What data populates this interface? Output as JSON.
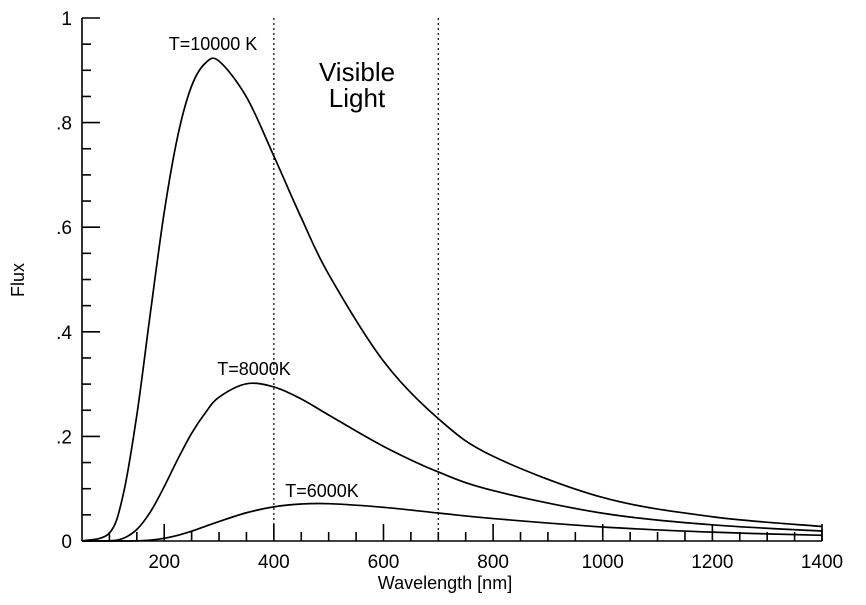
{
  "chart_data": {
    "type": "line",
    "title": "",
    "xlabel": "Wavelength [nm]",
    "ylabel": "Flux",
    "xlim": [
      50,
      1400
    ],
    "ylim": [
      0,
      1
    ],
    "x_ticks": [
      200,
      400,
      600,
      800,
      1000,
      1200,
      1400
    ],
    "x_tick_labels": [
      "200",
      "400",
      "600",
      "800",
      "1000",
      "1200",
      "1400"
    ],
    "y_ticks": [
      0,
      0.2,
      0.4,
      0.6,
      0.8,
      1
    ],
    "y_tick_labels": [
      "0",
      ".2",
      ".4",
      ".6",
      ".8",
      "1"
    ],
    "x_minor_step": 50,
    "y_minor_step": 0.05,
    "grid": false,
    "line_color": "#000000",
    "x": [
      50,
      100,
      125,
      150,
      175,
      200,
      225,
      250,
      275,
      300,
      350,
      400,
      450,
      500,
      600,
      700,
      800,
      1000,
      1200,
      1400
    ],
    "series": [
      {
        "label": "T=10000 K",
        "values": [
          0,
          0.0151,
          0.088,
          0.2406,
          0.438,
          0.6287,
          0.776,
          0.87,
          0.9136,
          0.9176,
          0.849,
          0.736,
          0.618,
          0.51,
          0.344,
          0.234,
          0.162,
          0.0832,
          0.0464,
          0.0277
        ]
      },
      {
        "label": "T=8000K",
        "values": [
          0,
          0.0004,
          0.005,
          0.0219,
          0.056,
          0.104,
          0.157,
          0.206,
          0.245,
          0.275,
          0.3006,
          0.2946,
          0.2716,
          0.241,
          0.181,
          0.132,
          0.0964,
          0.0531,
          0.0309,
          0.019
        ]
      },
      {
        "label": "T=6000K",
        "values": [
          0,
          0,
          0,
          0.0004,
          0.0018,
          0.0052,
          0.0109,
          0.0187,
          0.028,
          0.0372,
          0.054,
          0.0653,
          0.0707,
          0.0713,
          0.0644,
          0.0535,
          0.0429,
          0.0268,
          0.0169,
          0.0109
        ]
      }
    ],
    "vertical_lines": [
      400,
      700
    ],
    "vertical_line_style": "dotted",
    "annotations": {
      "visible_line1": "Visible",
      "visible_line2": "Light"
    }
  }
}
